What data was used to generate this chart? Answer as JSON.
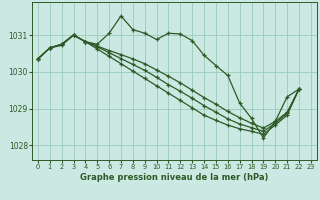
{
  "title": "Graphe pression niveau de la mer (hPa)",
  "background_color": "#cce8e2",
  "grid_color": "#99ccbb",
  "line_color": "#2d5a27",
  "xlim": [
    -0.5,
    23.5
  ],
  "ylim": [
    1027.6,
    1031.9
  ],
  "yticks": [
    1028,
    1029,
    1030,
    1031
  ],
  "xticks": [
    0,
    1,
    2,
    3,
    4,
    5,
    6,
    7,
    8,
    9,
    10,
    11,
    12,
    13,
    14,
    15,
    16,
    17,
    18,
    19,
    20,
    21,
    22,
    23
  ],
  "series": [
    {
      "x": [
        0,
        1,
        2,
        3,
        4,
        5,
        6,
        7,
        8,
        9,
        10,
        11,
        12,
        13,
        14,
        15,
        16,
        17,
        18,
        19,
        20,
        21,
        22
      ],
      "y": [
        1030.35,
        1030.65,
        1030.75,
        1031.0,
        1030.82,
        1030.75,
        1031.05,
        1031.52,
        1031.15,
        1031.05,
        1030.88,
        1031.05,
        1031.03,
        1030.85,
        1030.45,
        1030.17,
        1029.9,
        1029.15,
        1028.73,
        1028.2,
        1028.65,
        1029.32,
        1029.53
      ]
    },
    {
      "x": [
        0,
        1,
        2,
        3,
        4,
        5,
        6,
        7,
        8,
        9,
        10,
        11,
        12,
        13,
        14,
        15,
        16,
        17,
        18,
        19,
        20,
        21,
        22
      ],
      "y": [
        1030.35,
        1030.65,
        1030.75,
        1031.0,
        1030.82,
        1030.7,
        1030.58,
        1030.47,
        1030.35,
        1030.22,
        1030.05,
        1029.88,
        1029.7,
        1029.5,
        1029.3,
        1029.12,
        1028.92,
        1028.75,
        1028.6,
        1028.47,
        1028.65,
        1028.9,
        1029.53
      ]
    },
    {
      "x": [
        0,
        1,
        2,
        3,
        4,
        5,
        6,
        7,
        8,
        9,
        10,
        11,
        12,
        13,
        14,
        15,
        16,
        17,
        18,
        19,
        20,
        21,
        22
      ],
      "y": [
        1030.35,
        1030.65,
        1030.75,
        1031.0,
        1030.82,
        1030.68,
        1030.52,
        1030.36,
        1030.2,
        1030.04,
        1029.85,
        1029.65,
        1029.47,
        1029.28,
        1029.08,
        1028.9,
        1028.72,
        1028.58,
        1028.48,
        1028.38,
        1028.6,
        1028.87,
        1029.53
      ]
    },
    {
      "x": [
        0,
        1,
        2,
        3,
        4,
        5,
        6,
        7,
        8,
        9,
        10,
        11,
        12,
        13,
        14,
        15,
        16,
        17,
        18,
        19,
        20,
        21,
        22
      ],
      "y": [
        1030.35,
        1030.65,
        1030.72,
        1031.0,
        1030.82,
        1030.62,
        1030.42,
        1030.22,
        1030.02,
        1029.82,
        1029.62,
        1029.42,
        1029.22,
        1029.02,
        1028.82,
        1028.68,
        1028.55,
        1028.45,
        1028.38,
        1028.3,
        1028.55,
        1028.82,
        1029.53
      ]
    }
  ]
}
